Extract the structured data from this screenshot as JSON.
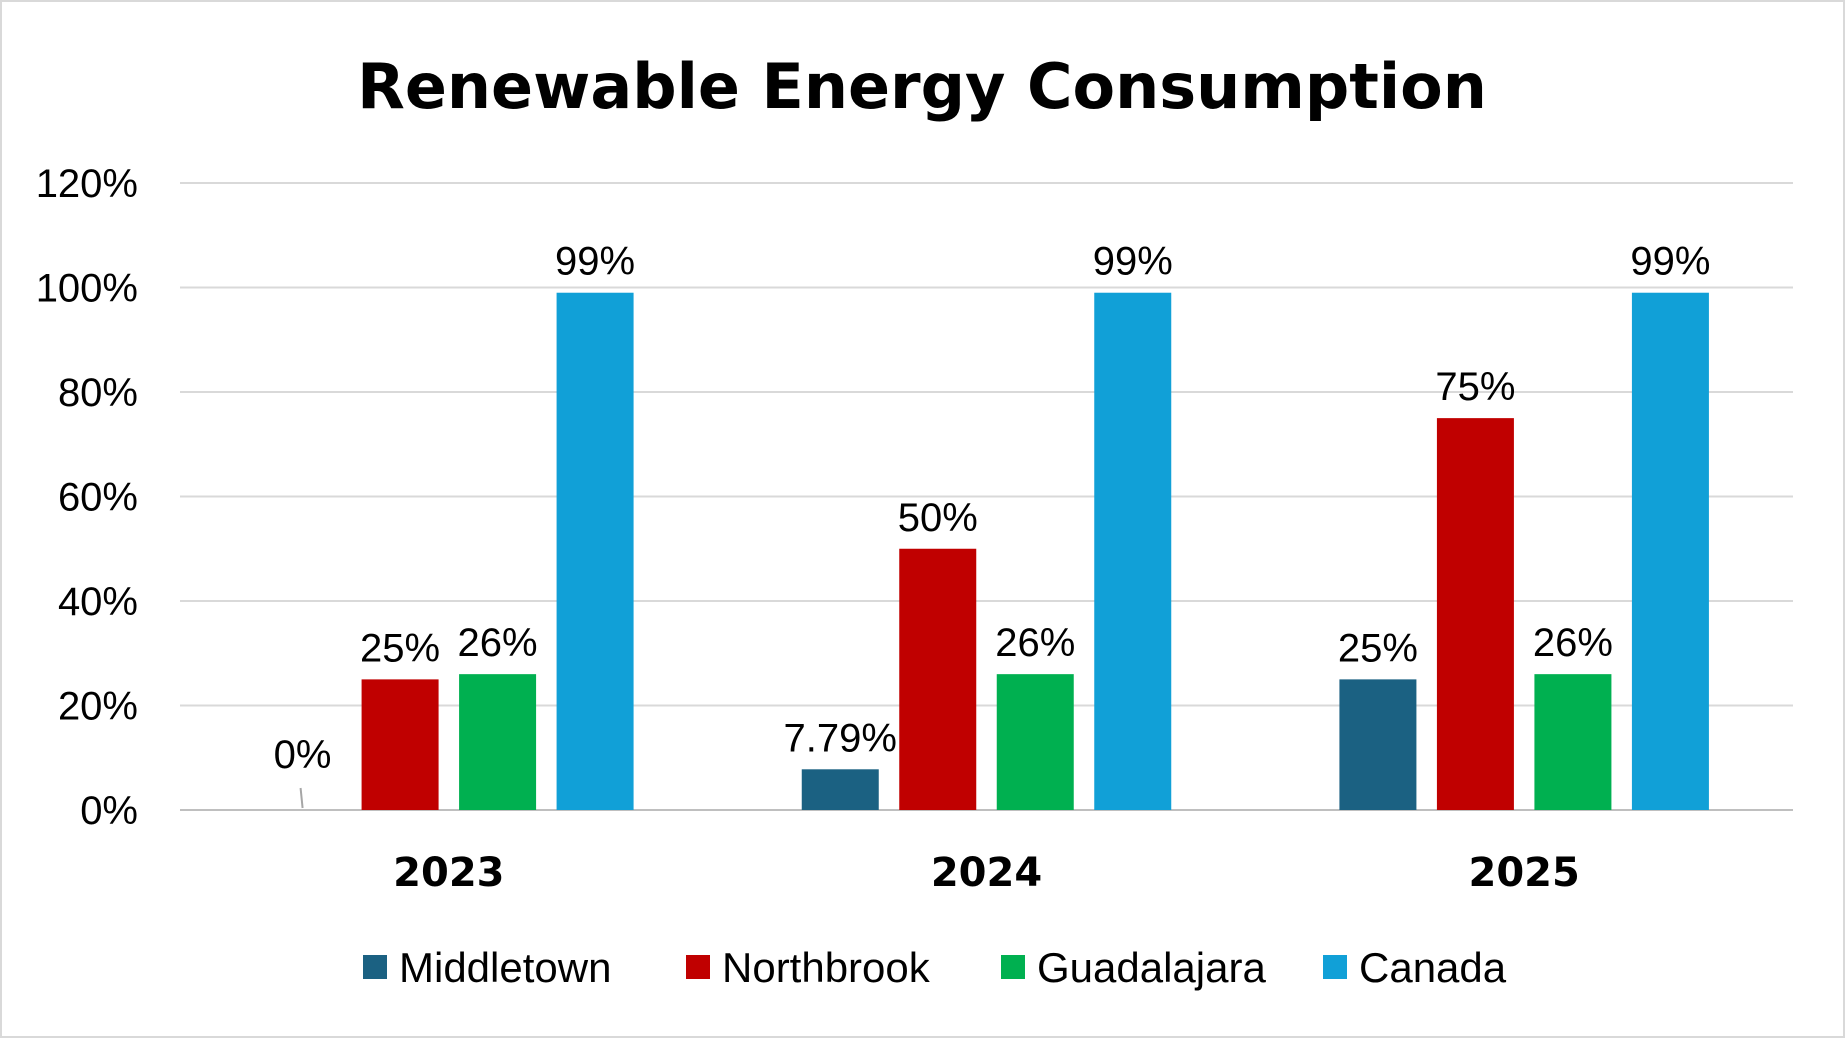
{
  "chart_data": {
    "type": "bar",
    "title": "Renewable Energy Consumption",
    "categories": [
      "2023",
      "2024",
      "2025"
    ],
    "series": [
      {
        "name": "Middletown",
        "color": "#1b6182",
        "values": [
          0,
          7.79,
          25
        ],
        "labels": [
          "0%",
          "7.79%",
          "25%"
        ]
      },
      {
        "name": "Northbrook",
        "color": "#c00000",
        "values": [
          25,
          50,
          75
        ],
        "labels": [
          "25%",
          "50%",
          "75%"
        ]
      },
      {
        "name": "Guadalajara",
        "color": "#00b050",
        "values": [
          26,
          26,
          26
        ],
        "labels": [
          "26%",
          "26%",
          "26%"
        ]
      },
      {
        "name": "Canada",
        "color": "#11a0d7",
        "values": [
          99,
          99,
          99
        ],
        "labels": [
          "99%",
          "99%",
          "99%"
        ]
      }
    ],
    "y_ticks": [
      "0%",
      "20%",
      "40%",
      "60%",
      "80%",
      "100%",
      "120%"
    ],
    "ylim": [
      0,
      120
    ],
    "grid": true,
    "legend": "bottom"
  }
}
